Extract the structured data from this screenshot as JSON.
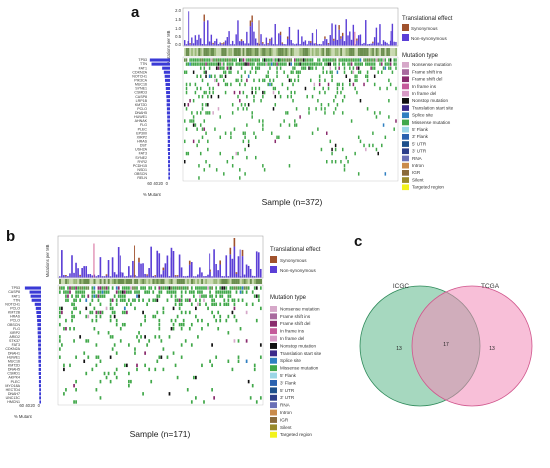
{
  "panels": {
    "a": {
      "letter": "a",
      "yaxis_label": "Mutations per MB",
      "yticks": [
        "2.0",
        "1.5",
        "1.0",
        "0.5",
        "0.0"
      ],
      "translational_title": "Translational effect",
      "translational_items": [
        {
          "label": "Synonymous",
          "color": "#a0522d"
        },
        {
          "label": "Non-synonymous",
          "color": "#5b3fd6"
        }
      ],
      "mutation_title": "Mutation type",
      "genes": [
        "TP53",
        "TTN",
        "FAT1",
        "CDKN2A",
        "NOTCH1",
        "PIK3CA",
        "MUC16",
        "SYNE1",
        "CSMD3",
        "CASP8",
        "LRP1B",
        "KMT2D",
        "PCLO",
        "DNAH5",
        "HUWE1",
        "AHNAK",
        "FLG",
        "PLEC",
        "EP300",
        "XIRP2",
        "HRAS",
        "DST",
        "USH2A",
        "FAT3",
        "SYNE2",
        "RYR2",
        "PCDH15",
        "NSD1",
        "OBSCN",
        "RELN"
      ],
      "gene_frac": [
        0.72,
        0.66,
        0.28,
        0.22,
        0.19,
        0.18,
        0.16,
        0.15,
        0.14,
        0.13,
        0.12,
        0.12,
        0.11,
        0.11,
        0.1,
        0.1,
        0.09,
        0.09,
        0.09,
        0.08,
        0.08,
        0.08,
        0.08,
        0.07,
        0.07,
        0.07,
        0.07,
        0.06,
        0.06,
        0.06
      ],
      "xticks": [
        "60",
        "40",
        "20",
        "0"
      ],
      "xaxis_label": "% Mutant",
      "sample_label": "Sample (n=372)"
    },
    "b": {
      "letter": "b",
      "yaxis_label": "Mutations per MB",
      "translational_title": "Translational effect",
      "translational_items": [
        {
          "label": "Synonymous",
          "color": "#a0522d"
        },
        {
          "label": "Non-synonymous",
          "color": "#5b3fd6"
        }
      ],
      "mutation_title": "Mutation type",
      "genes": [
        "TP53",
        "CASP8",
        "FAT1",
        "TTN",
        "NOTCH1",
        "PCLO",
        "KMT2B",
        "HRAS",
        "PCLO",
        "OBSCN",
        "FLG",
        "XIRP2",
        "ARID2",
        "STK37",
        "FAT3",
        "CDKN2A",
        "DNAH1",
        "HUWE1",
        "MUC16",
        "KMT2D",
        "DNAH5",
        "CSMD1",
        "AKPK4",
        "PLEC",
        "MYO18A",
        "HECTD4",
        "DNAH7",
        "UNC13C",
        "HMCN1"
      ],
      "gene_frac": [
        0.62,
        0.44,
        0.4,
        0.36,
        0.24,
        0.2,
        0.18,
        0.16,
        0.15,
        0.14,
        0.13,
        0.13,
        0.12,
        0.12,
        0.11,
        0.11,
        0.1,
        0.1,
        0.1,
        0.09,
        0.09,
        0.09,
        0.08,
        0.08,
        0.08,
        0.07,
        0.07,
        0.07,
        0.06
      ],
      "xticks": [
        "60",
        "40",
        "20",
        "0"
      ],
      "xaxis_label": "% Mutant",
      "sample_label": "Sample (n=171)"
    }
  },
  "mutation_types": [
    {
      "label": "Nonsense mutation",
      "color": "#d6a8c9"
    },
    {
      "label": "Frame shift ins",
      "color": "#a86a9e"
    },
    {
      "label": "Frame shift del",
      "color": "#8a2b6d"
    },
    {
      "label": "In frame ins",
      "color": "#c55a9a"
    },
    {
      "label": "In frame del",
      "color": "#d79ac5"
    },
    {
      "label": "Nonstop mutation",
      "color": "#111111"
    },
    {
      "label": "Translation start site",
      "color": "#3b2a8a"
    },
    {
      "label": "Splice site",
      "color": "#2f7fc1"
    },
    {
      "label": "Missense mutation",
      "color": "#41a84a"
    },
    {
      "label": "5' Flank",
      "color": "#9bd6e6"
    },
    {
      "label": "3' Flank",
      "color": "#2a62b0"
    },
    {
      "label": "5' UTR",
      "color": "#1c4f8c"
    },
    {
      "label": "3' UTR",
      "color": "#2c3e8a"
    },
    {
      "label": "RNA",
      "color": "#6a6fb6"
    },
    {
      "label": "Intron",
      "color": "#c98a4a"
    },
    {
      "label": "IGR",
      "color": "#8a6a3a"
    },
    {
      "label": "Silent",
      "color": "#9a8a2a"
    },
    {
      "label": "Targeted region",
      "color": "#f2f21a"
    }
  ],
  "venn": {
    "letter": "c",
    "left_label": "ICGC",
    "right_label": "TCGA",
    "left_only": "13",
    "overlap": "17",
    "right_only": "13",
    "left_color": "#5cb88a",
    "right_color": "#f28ab8"
  }
}
